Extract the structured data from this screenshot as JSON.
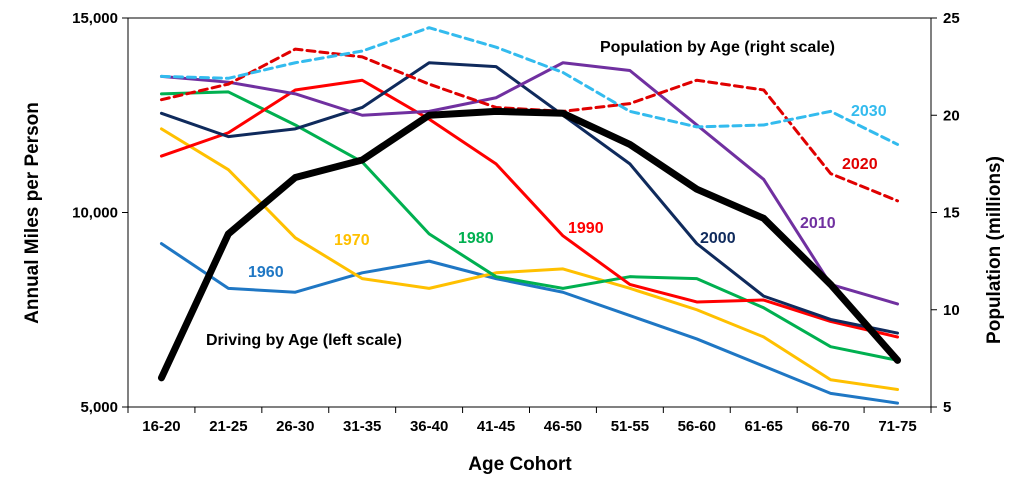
{
  "chart_data": {
    "type": "line",
    "categories": [
      "16-20",
      "21-25",
      "26-30",
      "31-35",
      "36-40",
      "41-45",
      "46-50",
      "51-55",
      "56-60",
      "61-65",
      "66-70",
      "71-75"
    ],
    "xlabel": "Age Cohort",
    "ylabel": "Annual Miles per Person",
    "y2label": "Population (millions)",
    "ylim": [
      5000,
      15000
    ],
    "y2lim": [
      5,
      25
    ],
    "yticks": [
      "5,000",
      "10,000",
      "15,000"
    ],
    "y2ticks": [
      "5",
      "10",
      "15",
      "20",
      "25"
    ],
    "annotations": {
      "driving": "Driving by Age (left scale)",
      "population": "Population by Age (right scale)"
    },
    "driving_series": [
      {
        "name": "1960",
        "color": "#1F77C4",
        "values": [
          9200,
          8050,
          7950,
          8450,
          8750,
          8300,
          7950,
          7350,
          6750,
          6050,
          5350,
          5100
        ]
      },
      {
        "name": "1970",
        "color": "#FFC000",
        "values": [
          12150,
          11100,
          9350,
          8300,
          8050,
          8450,
          8550,
          8050,
          7500,
          6800,
          5700,
          5450
        ]
      },
      {
        "name": "1980",
        "color": "#00B050",
        "values": [
          13050,
          13100,
          12250,
          11300,
          9450,
          8350,
          8050,
          8350,
          8300,
          7550,
          6550,
          6200
        ]
      },
      {
        "name": "1990",
        "color": "#FF0000",
        "values": [
          11450,
          12050,
          13150,
          13400,
          12400,
          11250,
          9400,
          8150,
          7700,
          7750,
          7200,
          6800
        ]
      },
      {
        "name": "2000",
        "color": "#0F2A5C",
        "values": [
          12550,
          11950,
          12150,
          12700,
          13850,
          13750,
          12500,
          11250,
          9200,
          7850,
          7250,
          6900
        ]
      },
      {
        "name": "2010",
        "color": "#7030A0",
        "values": [
          13500,
          13350,
          13050,
          12500,
          12600,
          12950,
          13850,
          13650,
          12250,
          10850,
          8150,
          7650
        ]
      },
      {
        "name": "Driving by Age (left scale)",
        "color": "#000000",
        "values": [
          5750,
          9450,
          10900,
          11350,
          12500,
          12600,
          12550,
          11750,
          10600,
          9850,
          8150,
          6200
        ]
      }
    ],
    "population_series": [
      {
        "name": "2020",
        "color": "#E00000",
        "values": [
          20.8,
          21.6,
          23.4,
          23.0,
          21.6,
          20.4,
          20.2,
          20.6,
          21.8,
          21.3,
          17.0,
          15.6
        ]
      },
      {
        "name": "2030",
        "color": "#33BBEE",
        "values": [
          22.0,
          21.9,
          22.7,
          23.3,
          24.5,
          23.5,
          22.2,
          20.2,
          19.4,
          19.5,
          20.2,
          18.5
        ]
      }
    ]
  }
}
